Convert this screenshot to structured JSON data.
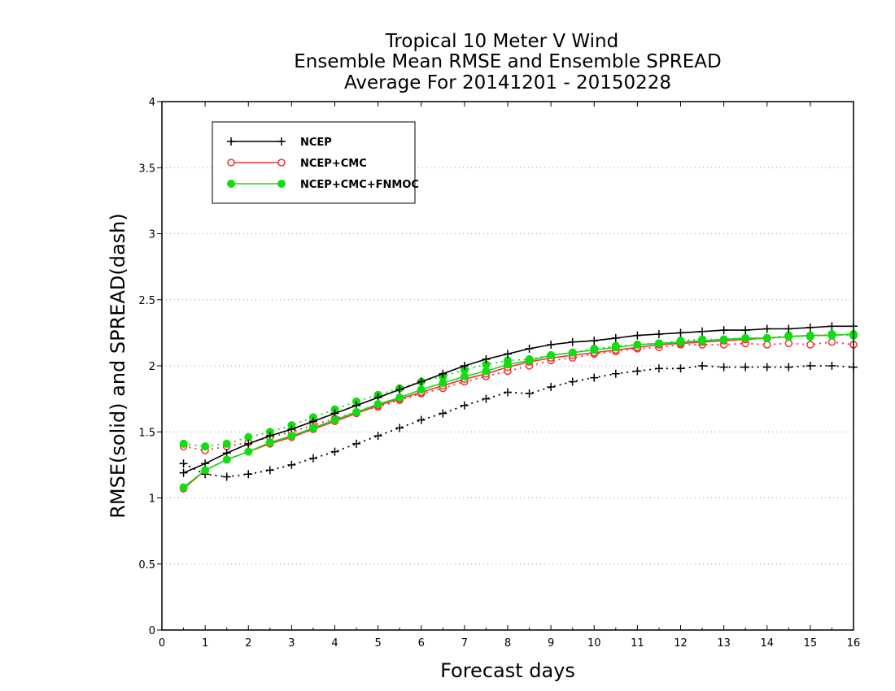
{
  "chart_data": {
    "type": "line",
    "title_lines": [
      "Tropical 10 Meter V Wind",
      "Ensemble Mean RMSE and Ensemble SPREAD",
      "Average For 20141201 - 20150228"
    ],
    "xlabel": "Forecast days",
    "ylabel": "RMSE(solid) and SPREAD(dash)",
    "xlim": [
      0,
      16
    ],
    "ylim": [
      0,
      4
    ],
    "x_ticks": [
      "0",
      "1",
      "2",
      "3",
      "4",
      "5",
      "6",
      "7",
      "8",
      "9",
      "10",
      "11",
      "12",
      "13",
      "14",
      "15",
      "16"
    ],
    "y_ticks": [
      "0",
      "0.5",
      "1",
      "1.5",
      "2",
      "2.5",
      "3",
      "3.5",
      "4"
    ],
    "grid": "horizontal dotted",
    "legend_position": "top-left",
    "x": [
      0.5,
      1,
      1.5,
      2,
      2.5,
      3,
      3.5,
      4,
      4.5,
      5,
      5.5,
      6,
      6.5,
      7,
      7.5,
      8,
      8.5,
      9,
      9.5,
      10,
      10.5,
      11,
      11.5,
      12,
      12.5,
      13,
      13.5,
      14,
      14.5,
      15,
      15.5,
      16
    ],
    "series": [
      {
        "name": "NCEP",
        "color": "#000000",
        "marker": "plus",
        "rmse": [
          1.19,
          1.26,
          1.34,
          1.41,
          1.47,
          1.52,
          1.58,
          1.64,
          1.7,
          1.76,
          1.82,
          1.88,
          1.94,
          2.0,
          2.05,
          2.09,
          2.13,
          2.16,
          2.18,
          2.19,
          2.21,
          2.23,
          2.24,
          2.25,
          2.26,
          2.27,
          2.27,
          2.28,
          2.28,
          2.29,
          2.3,
          2.3
        ],
        "spread": [
          1.26,
          1.18,
          1.16,
          1.18,
          1.21,
          1.25,
          1.3,
          1.35,
          1.41,
          1.47,
          1.53,
          1.59,
          1.64,
          1.7,
          1.75,
          1.8,
          1.79,
          1.84,
          1.88,
          1.91,
          1.94,
          1.96,
          1.98,
          1.98,
          2.0,
          1.99,
          1.99,
          1.99,
          1.99,
          2.0,
          2.0,
          1.99
        ]
      },
      {
        "name": "NCEP+CMC",
        "color": "#ee3333",
        "marker": "open-circle",
        "rmse": [
          1.07,
          1.21,
          1.29,
          1.35,
          1.41,
          1.46,
          1.52,
          1.58,
          1.64,
          1.7,
          1.75,
          1.8,
          1.85,
          1.9,
          1.94,
          1.99,
          2.03,
          2.06,
          2.08,
          2.1,
          2.12,
          2.14,
          2.16,
          2.17,
          2.18,
          2.19,
          2.2,
          2.21,
          2.22,
          2.23,
          2.23,
          2.24
        ],
        "spread": [
          1.39,
          1.36,
          1.39,
          1.42,
          1.46,
          1.5,
          1.55,
          1.6,
          1.65,
          1.69,
          1.74,
          1.79,
          1.83,
          1.88,
          1.92,
          1.96,
          2.0,
          2.04,
          2.06,
          2.09,
          2.11,
          2.13,
          2.14,
          2.16,
          2.16,
          2.16,
          2.17,
          2.16,
          2.17,
          2.16,
          2.18,
          2.16
        ]
      },
      {
        "name": "NCEP+CMC+FNMOC",
        "color": "#11dd11",
        "marker": "filled-circle",
        "rmse": [
          1.08,
          1.21,
          1.29,
          1.35,
          1.42,
          1.47,
          1.53,
          1.59,
          1.65,
          1.71,
          1.76,
          1.82,
          1.87,
          1.92,
          1.96,
          2.01,
          2.04,
          2.08,
          2.1,
          2.12,
          2.14,
          2.16,
          2.17,
          2.18,
          2.19,
          2.2,
          2.21,
          2.21,
          2.22,
          2.23,
          2.23,
          2.24
        ],
        "spread": [
          1.41,
          1.39,
          1.41,
          1.46,
          1.5,
          1.55,
          1.61,
          1.67,
          1.73,
          1.78,
          1.83,
          1.88,
          1.92,
          1.97,
          2.01,
          2.04,
          2.05,
          2.08,
          2.1,
          2.13,
          2.15,
          2.16,
          2.17,
          2.19,
          2.2,
          2.2,
          2.21,
          2.21,
          2.23,
          2.22,
          2.24,
          2.23
        ]
      }
    ]
  }
}
